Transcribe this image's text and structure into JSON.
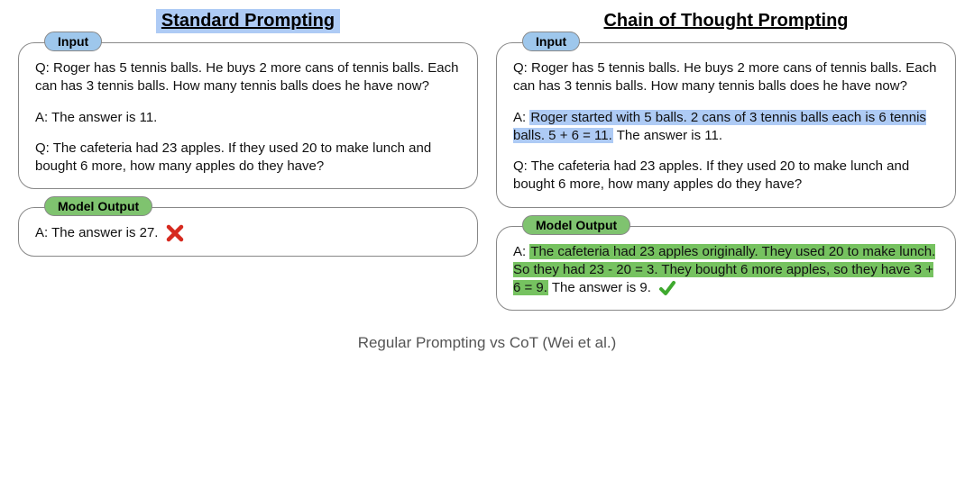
{
  "colors": {
    "title_highlight_bg": "#aecbf5",
    "input_label_bg": "#9ec7ec",
    "output_label_bg": "#7fc36f",
    "reasoning_highlight_bg": "#76c260",
    "text_color": "#111111",
    "border_color": "#888888",
    "cross_color": "#d62a1f",
    "check_color": "#3fa92f",
    "caption_color": "#555555"
  },
  "typography": {
    "title_fontsize": 20,
    "body_fontsize": 15,
    "label_fontsize": 14,
    "caption_fontsize": 17
  },
  "left": {
    "title": "Standard Prompting",
    "title_highlighted": true,
    "input_label": "Input",
    "input_paragraphs": [
      {
        "prefix": "Q: Roger has 5 tennis balls. He buys 2 more cans of tennis balls. Each can has 3 tennis balls. How many tennis balls does he have now?",
        "hl": "",
        "suffix": ""
      },
      {
        "prefix": "A: The answer is 11.",
        "hl": "",
        "suffix": ""
      },
      {
        "prefix": "Q: The cafeteria had 23 apples. If they used 20 to make lunch and bought 6 more, how many apples do they have?",
        "hl": "",
        "suffix": ""
      }
    ],
    "output_label": "Model Output",
    "output": {
      "prefix": "A: The answer is 27.",
      "hl": "",
      "suffix": "",
      "mark": "cross"
    }
  },
  "right": {
    "title": "Chain of Thought Prompting",
    "title_highlighted": false,
    "input_label": "Input",
    "input_paragraphs": [
      {
        "prefix": "Q: Roger has 5 tennis balls. He buys 2 more cans of tennis balls. Each can has 3 tennis balls. How many tennis balls does he have now?",
        "hl": "",
        "suffix": ""
      },
      {
        "prefix": "A: ",
        "hl": "Roger started with 5 balls. 2 cans of 3 tennis balls each is 6 tennis balls. 5 + 6 = 11.",
        "suffix": " The answer is 11."
      },
      {
        "prefix": "Q: The cafeteria had 23 apples. If they used 20 to make lunch and bought 6 more, how many apples do they have?",
        "hl": "",
        "suffix": ""
      }
    ],
    "output_label": "Model Output",
    "output": {
      "prefix": "A: ",
      "hl": "The cafeteria had 23 apples originally. They used 20 to make lunch. So they had 23 - 20 = 3. They bought 6 more apples, so they have 3 + 6 = 9.",
      "suffix": " The answer is 9.",
      "mark": "check"
    }
  },
  "caption": "Regular Prompting vs CoT (Wei et al.)"
}
